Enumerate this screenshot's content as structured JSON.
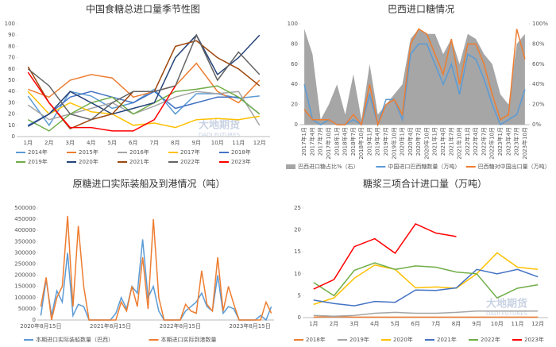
{
  "watermark": {
    "cn": "大地期货",
    "en": "DADI FUTURES"
  },
  "chart_data": [
    {
      "type": "line",
      "title": "中国食糖总进口量季节性图",
      "categories": [
        "1月",
        "2月",
        "3月",
        "4月",
        "5月",
        "6月",
        "7月",
        "8月",
        "9月",
        "10月",
        "11月",
        "12月"
      ],
      "ylim": [
        0,
        100
      ],
      "yticks": [
        0,
        10,
        20,
        30,
        40,
        50,
        60,
        70,
        80,
        90,
        100
      ],
      "series": [
        {
          "name": "2014年",
          "color": "#5b9bd5",
          "values": [
            36,
            10,
            40,
            36,
            25,
            30,
            42,
            20,
            38,
            38,
            34,
            36
          ]
        },
        {
          "name": "2015年",
          "color": "#ed7d31",
          "values": [
            42,
            35,
            50,
            55,
            52,
            35,
            40,
            45,
            65,
            40,
            30,
            50
          ]
        },
        {
          "name": "2016年",
          "color": "#a5a5a5",
          "values": [
            28,
            15,
            20,
            25,
            30,
            20,
            27,
            35,
            40,
            38,
            40,
            10
          ]
        },
        {
          "name": "2017年",
          "color": "#ffc000",
          "values": [
            40,
            20,
            30,
            22,
            20,
            10,
            12,
            8,
            15,
            16,
            15,
            18
          ]
        },
        {
          "name": "2018年",
          "color": "#4472c4",
          "values": [
            10,
            20,
            35,
            40,
            35,
            30,
            40,
            25,
            30,
            35,
            35,
            20
          ]
        },
        {
          "name": "2019年",
          "color": "#70ad47",
          "values": [
            15,
            5,
            20,
            30,
            35,
            20,
            30,
            40,
            42,
            45,
            35,
            20
          ]
        },
        {
          "name": "2020年",
          "color": "#264478",
          "values": [
            9,
            20,
            40,
            30,
            20,
            25,
            30,
            70,
            90,
            55,
            70,
            90
          ]
        },
        {
          "name": "2021年",
          "color": "#9e480e",
          "values": [
            62,
            30,
            7,
            15,
            20,
            40,
            40,
            80,
            85,
            70,
            60,
            45
          ]
        },
        {
          "name": "2022年",
          "color": "#636363",
          "values": [
            60,
            45,
            20,
            15,
            30,
            40,
            40,
            45,
            90,
            50,
            75,
            55
          ]
        },
        {
          "name": "2023年",
          "color": "#ff0000",
          "values": [
            57,
            30,
            8,
            8,
            5,
            5,
            15,
            45,
            null,
            null,
            null,
            null
          ]
        }
      ]
    },
    {
      "type": "line",
      "title": "巴西进口糖情况",
      "categories": [
        "2017年1月",
        "2017年4月",
        "2017年7月",
        "2017年10月",
        "2018年1月",
        "2018年4月",
        "2018年7月",
        "2018年10月",
        "2019年1月",
        "2019年4月",
        "2019年7月",
        "2019年10月",
        "2020年1月",
        "2020年4月",
        "2020年7月",
        "2020年10月",
        "2021年1月",
        "2021年4月",
        "2021年7月",
        "2021年10月",
        "2022年1月",
        "2022年4月",
        "2022年7月",
        "2022年10月",
        "2023年1月",
        "2023年4月",
        "2023年7月",
        "2023年10月"
      ],
      "ylim": [
        0,
        100
      ],
      "yticks": [
        0,
        20,
        40,
        60,
        80,
        100
      ],
      "y2lim": [
        0,
        100
      ],
      "y2ticks": [
        {
          "value": 0,
          "label": "0%"
        },
        {
          "value": 20,
          "label": "20%"
        },
        {
          "value": 40,
          "label": "40%"
        },
        {
          "value": 60,
          "label": "60%"
        },
        {
          "value": 80,
          "label": "80%"
        },
        {
          "value": 100,
          "label": "100%"
        }
      ],
      "series": [
        {
          "name": "巴西进口糖占比%（右）",
          "color": "#a6a6a6",
          "kind": "area",
          "axis": "y2",
          "values": [
            95,
            70,
            5,
            20,
            40,
            10,
            50,
            5,
            60,
            10,
            20,
            30,
            40,
            85,
            95,
            90,
            90,
            70,
            85,
            60,
            90,
            85,
            70,
            60,
            30,
            20,
            80,
            90
          ]
        },
        {
          "name": "中国进口巴西糖数量（万吨）",
          "color": "#5b9bd5",
          "values": [
            40,
            5,
            0,
            5,
            0,
            0,
            5,
            0,
            30,
            0,
            25,
            25,
            5,
            70,
            80,
            80,
            60,
            40,
            60,
            30,
            70,
            65,
            45,
            20,
            0,
            5,
            10,
            35
          ]
        },
        {
          "name": "巴西糖对中国出口量（万吨）",
          "color": "#ed7d31",
          "values": [
            15,
            5,
            5,
            5,
            0,
            0,
            10,
            0,
            40,
            0,
            20,
            25,
            10,
            80,
            95,
            90,
            70,
            50,
            85,
            40,
            80,
            80,
            60,
            30,
            5,
            10,
            95,
            65
          ]
        }
      ]
    },
    {
      "type": "line",
      "title": "原糖进口实际装船及到港情况（吨）",
      "categories": [
        "2020年8月15日",
        null,
        null,
        null,
        null,
        null,
        null,
        null,
        null,
        null,
        null,
        null,
        null,
        "2021年8月15日",
        null,
        null,
        null,
        null,
        null,
        null,
        null,
        null,
        null,
        null,
        null,
        null,
        "2022年8月15日",
        null,
        null,
        null,
        null,
        null,
        null,
        null,
        null,
        null,
        null,
        null,
        null,
        "2023年8月15日",
        null,
        null,
        null,
        null
      ],
      "ylim": [
        0,
        500000
      ],
      "yticks": [
        0,
        50000,
        100000,
        150000,
        200000,
        250000,
        300000,
        350000,
        400000,
        450000,
        500000
      ],
      "series": [
        {
          "name": "本期进口实际装船数量（巴西）",
          "color": "#5b9bd5",
          "values": [
            20000,
            180000,
            20000,
            130000,
            80000,
            300000,
            20000,
            70000,
            60000,
            0,
            0,
            0,
            0,
            0,
            30000,
            100000,
            50000,
            150000,
            120000,
            360000,
            100000,
            150000,
            40000,
            0,
            0,
            0,
            0,
            40000,
            60000,
            80000,
            120000,
            60000,
            40000,
            200000,
            30000,
            60000,
            50000,
            0,
            0,
            0,
            0,
            20000,
            0,
            60000
          ]
        },
        {
          "name": "本期进口实际到港数量",
          "color": "#ed7d31",
          "values": [
            60000,
            190000,
            0,
            100000,
            150000,
            465000,
            60000,
            420000,
            150000,
            0,
            0,
            0,
            0,
            0,
            0,
            80000,
            40000,
            150000,
            60000,
            280000,
            50000,
            450000,
            100000,
            0,
            0,
            0,
            0,
            70000,
            40000,
            30000,
            220000,
            70000,
            40000,
            280000,
            40000,
            150000,
            70000,
            0,
            0,
            0,
            0,
            0,
            80000,
            30000
          ]
        }
      ]
    },
    {
      "type": "line",
      "title": "糖浆三项合计进口量（万吨）",
      "categories": [
        "1月",
        "2月",
        "3月",
        "4月",
        "5月",
        "6月",
        "7月",
        "8月",
        "9月",
        "10月",
        "11月",
        "12月"
      ],
      "ylim": [
        0,
        25
      ],
      "yticks": [
        0,
        5,
        10,
        15,
        20,
        25
      ],
      "series": [
        {
          "name": "2018年",
          "color": "#ed7d31",
          "values": [
            0.1,
            0.2,
            0.1,
            0.1,
            0.1,
            0.1,
            0.1,
            0.1,
            0.1,
            0.1,
            0.1,
            0.1
          ]
        },
        {
          "name": "2019年",
          "color": "#a5a5a5",
          "values": [
            0.5,
            0.3,
            0.5,
            1,
            1.2,
            1,
            1,
            1.2,
            1.5,
            1.5,
            1.5,
            1.5
          ]
        },
        {
          "name": "2020年",
          "color": "#ffc000",
          "values": [
            3,
            4.5,
            9,
            12,
            11,
            6.8,
            7,
            6.7,
            10,
            14.8,
            11.5,
            11
          ]
        },
        {
          "name": "2021年",
          "color": "#4472c4",
          "values": [
            4,
            3.2,
            2.7,
            3.7,
            3.5,
            6.3,
            6.2,
            6.8,
            11,
            10,
            11,
            9.3
          ]
        },
        {
          "name": "2022年",
          "color": "#70ad47",
          "values": [
            8,
            5,
            10.8,
            12.5,
            11,
            11.8,
            11.5,
            10.4,
            10,
            4.5,
            6.7,
            7.5
          ]
        },
        {
          "name": "2023年",
          "color": "#ff0000",
          "values": [
            6.5,
            8.7,
            16.2,
            18,
            14.7,
            21.4,
            19.3,
            18.5,
            null,
            null,
            null,
            null
          ]
        }
      ]
    }
  ]
}
